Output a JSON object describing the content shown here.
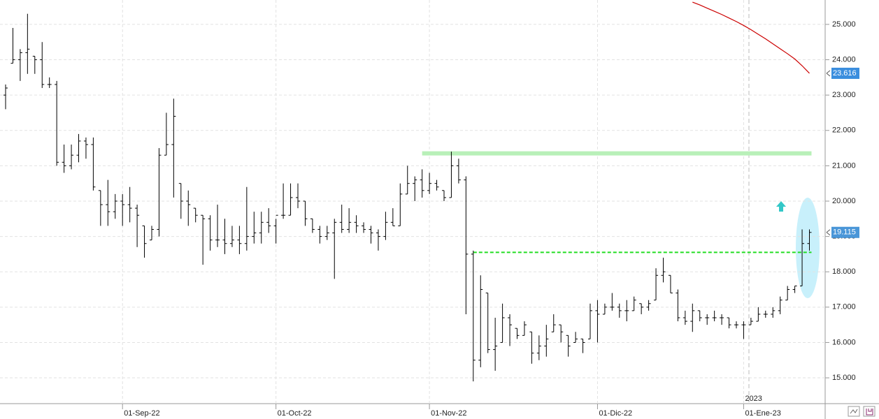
{
  "chart_data": {
    "type": "ohlc",
    "color": "#000000",
    "categories": [
      null,
      null,
      null,
      null,
      null,
      null,
      null,
      null,
      null,
      null,
      null,
      null,
      null,
      null,
      null,
      null,
      "01-Sep-22",
      null,
      null,
      null,
      null,
      null,
      null,
      null,
      null,
      null,
      null,
      null,
      null,
      null,
      null,
      null,
      null,
      null,
      null,
      null,
      null,
      "01-Oct-22",
      null,
      null,
      null,
      null,
      null,
      null,
      null,
      null,
      null,
      null,
      null,
      null,
      null,
      null,
      null,
      null,
      null,
      null,
      null,
      null,
      "01-Nov-22",
      null,
      null,
      null,
      null,
      null,
      null,
      null,
      null,
      null,
      null,
      null,
      null,
      null,
      null,
      null,
      null,
      null,
      null,
      null,
      null,
      null,
      null,
      "01-Dic-22",
      null,
      null,
      null,
      null,
      null,
      null,
      null,
      null,
      null,
      null,
      null,
      null,
      null,
      null,
      null,
      null,
      null,
      null,
      null,
      "01-Ene-23",
      null,
      null,
      null,
      null,
      null,
      null,
      null,
      null,
      null
    ],
    "open": [
      23.0,
      23.9,
      24.0,
      24.2,
      24.1,
      24.0,
      23.3,
      23.3,
      21.1,
      21.0,
      21.3,
      21.7,
      21.6,
      20.3,
      19.9,
      19.7,
      20.0,
      19.9,
      19.8,
      19.3,
      18.9,
      19.2,
      21.3,
      21.6,
      20.5,
      20.0,
      19.8,
      19.6,
      19.5,
      18.9,
      18.9,
      18.8,
      18.9,
      18.8,
      19.0,
      19.1,
      19.4,
      19.3,
      19.6,
      19.6,
      20.1,
      20.0,
      19.5,
      19.2,
      19.0,
      19.1,
      19.4,
      19.2,
      19.4,
      19.3,
      19.2,
      19.1,
      19.0,
      19.4,
      19.3,
      20.2,
      20.5,
      20.6,
      20.3,
      20.5,
      20.3,
      20.1,
      21.0,
      20.6,
      18.5,
      15.5,
      17.4,
      15.8,
      16.0,
      16.7,
      16.4,
      16.2,
      16.3,
      15.7,
      15.9,
      16.3,
      16.5,
      16.2,
      16.0,
      16.1,
      16.1,
      16.9,
      16.8,
      17.0,
      17.0,
      16.9,
      16.9,
      17.1,
      17.0,
      17.2,
      17.9,
      17.9,
      17.4,
      16.7,
      16.6,
      16.9,
      16.7,
      16.7,
      16.7,
      16.7,
      16.5,
      16.5,
      16.5,
      16.6,
      16.8,
      16.8,
      16.9,
      17.2,
      17.5,
      17.6,
      18.8
    ],
    "high": [
      23.3,
      24.9,
      24.3,
      25.3,
      24.1,
      24.5,
      23.5,
      23.4,
      21.6,
      21.6,
      21.9,
      21.8,
      21.8,
      20.3,
      20.6,
      20.2,
      20.2,
      20.4,
      19.9,
      19.3,
      19.3,
      21.5,
      22.5,
      22.9,
      20.5,
      20.3,
      19.8,
      19.6,
      19.6,
      19.9,
      19.5,
      19.3,
      19.3,
      20.4,
      19.7,
      19.7,
      19.8,
      19.5,
      20.5,
      20.5,
      20.5,
      20.0,
      19.5,
      19.3,
      19.3,
      19.5,
      19.9,
      19.8,
      19.6,
      19.4,
      19.3,
      19.2,
      19.7,
      19.8,
      20.5,
      21.0,
      20.7,
      20.9,
      20.8,
      20.6,
      20.3,
      21.4,
      21.2,
      20.7,
      18.6,
      17.9,
      17.4,
      16.7,
      17.1,
      16.8,
      16.4,
      16.6,
      16.3,
      16.2,
      16.5,
      16.8,
      16.5,
      16.2,
      16.3,
      16.1,
      17.1,
      17.2,
      17.1,
      17.4,
      17.1,
      17.2,
      17.3,
      17.1,
      17.2,
      18.1,
      18.4,
      17.9,
      17.5,
      16.9,
      17.1,
      16.9,
      16.8,
      16.9,
      16.8,
      16.7,
      16.6,
      16.6,
      16.7,
      17.0,
      16.9,
      17.0,
      17.3,
      17.6,
      17.6,
      19.2,
      19.2
    ],
    "low": [
      22.6,
      23.9,
      23.4,
      23.6,
      23.6,
      23.2,
      23.2,
      21.0,
      20.8,
      20.9,
      21.1,
      21.2,
      20.3,
      19.3,
      19.3,
      19.5,
      19.3,
      19.4,
      18.7,
      18.4,
      18.9,
      19.0,
      21.3,
      20.1,
      19.5,
      19.3,
      19.4,
      18.2,
      18.6,
      18.7,
      18.5,
      18.7,
      18.5,
      18.6,
      18.8,
      18.8,
      19.1,
      18.8,
      19.5,
      19.6,
      19.8,
      19.3,
      19.1,
      18.8,
      18.9,
      17.8,
      19.1,
      19.1,
      19.1,
      19.1,
      18.8,
      18.6,
      18.9,
      19.3,
      19.3,
      20.2,
      20.0,
      20.1,
      20.2,
      20.3,
      20.0,
      20.1,
      20.5,
      16.8,
      14.9,
      15.3,
      15.7,
      15.2,
      16.0,
      15.9,
      16.1,
      16.2,
      15.4,
      15.5,
      15.6,
      16.3,
      16.0,
      15.6,
      16.0,
      15.7,
      16.1,
      16.0,
      16.8,
      16.9,
      16.7,
      16.6,
      16.9,
      16.8,
      16.9,
      17.2,
      17.7,
      17.4,
      16.6,
      16.5,
      16.3,
      16.6,
      16.5,
      16.6,
      16.5,
      16.4,
      16.4,
      16.1,
      16.5,
      16.6,
      16.7,
      16.7,
      16.8,
      17.2,
      17.4,
      17.6,
      18.6
    ],
    "close": [
      23.2,
      24.0,
      24.2,
      24.3,
      24.0,
      23.3,
      23.3,
      21.1,
      21.0,
      21.3,
      21.7,
      21.6,
      20.4,
      19.9,
      19.7,
      20.0,
      19.9,
      19.8,
      19.6,
      18.8,
      19.2,
      21.3,
      21.6,
      22.4,
      20.0,
      19.9,
      19.6,
      19.5,
      18.9,
      18.9,
      18.8,
      18.9,
      18.8,
      19.0,
      19.1,
      19.4,
      19.3,
      19.6,
      19.6,
      20.1,
      20.0,
      19.5,
      19.2,
      19.0,
      19.1,
      19.4,
      19.2,
      19.4,
      19.3,
      19.2,
      19.1,
      19.0,
      19.4,
      19.3,
      20.2,
      20.5,
      20.6,
      20.3,
      20.5,
      20.4,
      20.1,
      21.0,
      20.6,
      18.5,
      15.5,
      17.5,
      15.8,
      15.9,
      16.7,
      16.5,
      16.2,
      16.5,
      15.7,
      15.9,
      16.1,
      16.5,
      16.3,
      15.9,
      16.1,
      16.0,
      16.9,
      16.8,
      17.0,
      17.0,
      16.9,
      16.9,
      17.2,
      17.0,
      17.1,
      17.9,
      18.0,
      17.4,
      16.7,
      16.6,
      16.9,
      16.7,
      16.7,
      16.7,
      16.7,
      16.5,
      16.5,
      16.5,
      16.6,
      16.8,
      16.8,
      16.9,
      17.2,
      17.5,
      17.6,
      18.8,
      19.115
    ],
    "last_close_label": "19.115",
    "ma": {
      "color": "#cc0000",
      "values": [
        null,
        null,
        null,
        null,
        null,
        null,
        null,
        null,
        null,
        null,
        null,
        null,
        null,
        null,
        null,
        null,
        null,
        null,
        null,
        null,
        null,
        null,
        null,
        null,
        null,
        null,
        null,
        null,
        null,
        null,
        null,
        null,
        null,
        null,
        null,
        null,
        null,
        null,
        null,
        null,
        null,
        null,
        null,
        null,
        null,
        null,
        null,
        null,
        null,
        null,
        null,
        null,
        null,
        null,
        null,
        null,
        null,
        null,
        null,
        null,
        null,
        null,
        null,
        null,
        null,
        null,
        null,
        null,
        null,
        null,
        null,
        null,
        null,
        null,
        null,
        null,
        null,
        null,
        null,
        null,
        null,
        null,
        null,
        null,
        null,
        null,
        null,
        null,
        null,
        null,
        null,
        null,
        null,
        null,
        25.63,
        25.55,
        25.46,
        25.37,
        25.28,
        25.18,
        25.08,
        24.97,
        24.85,
        24.72,
        24.59,
        24.45,
        24.31,
        24.17,
        24.02,
        23.83,
        23.616
      ],
      "last_value_label": "23.616"
    },
    "hlines": [
      {
        "value": 21.35,
        "color": "#b8f0b8",
        "from": 57
      },
      {
        "value": 18.55,
        "color": "#22dd22",
        "from": 64
      }
    ],
    "year_label": "2023",
    "ylim": [
      14.27,
      25.69
    ],
    "yticks": [
      {
        "value": 15,
        "label": "15.000"
      },
      {
        "value": 16,
        "label": "16.000"
      },
      {
        "value": 17,
        "label": "17.000"
      },
      {
        "value": 18,
        "label": "18.000"
      },
      {
        "value": 19,
        "label": "19.000"
      },
      {
        "value": 20,
        "label": "20.000"
      },
      {
        "value": 21,
        "label": "21.000"
      },
      {
        "value": 22,
        "label": "22.000"
      },
      {
        "value": 23,
        "label": "23.000"
      },
      {
        "value": 24,
        "label": "24.000"
      },
      {
        "value": 25,
        "label": "25.000"
      }
    ],
    "grid": true
  }
}
